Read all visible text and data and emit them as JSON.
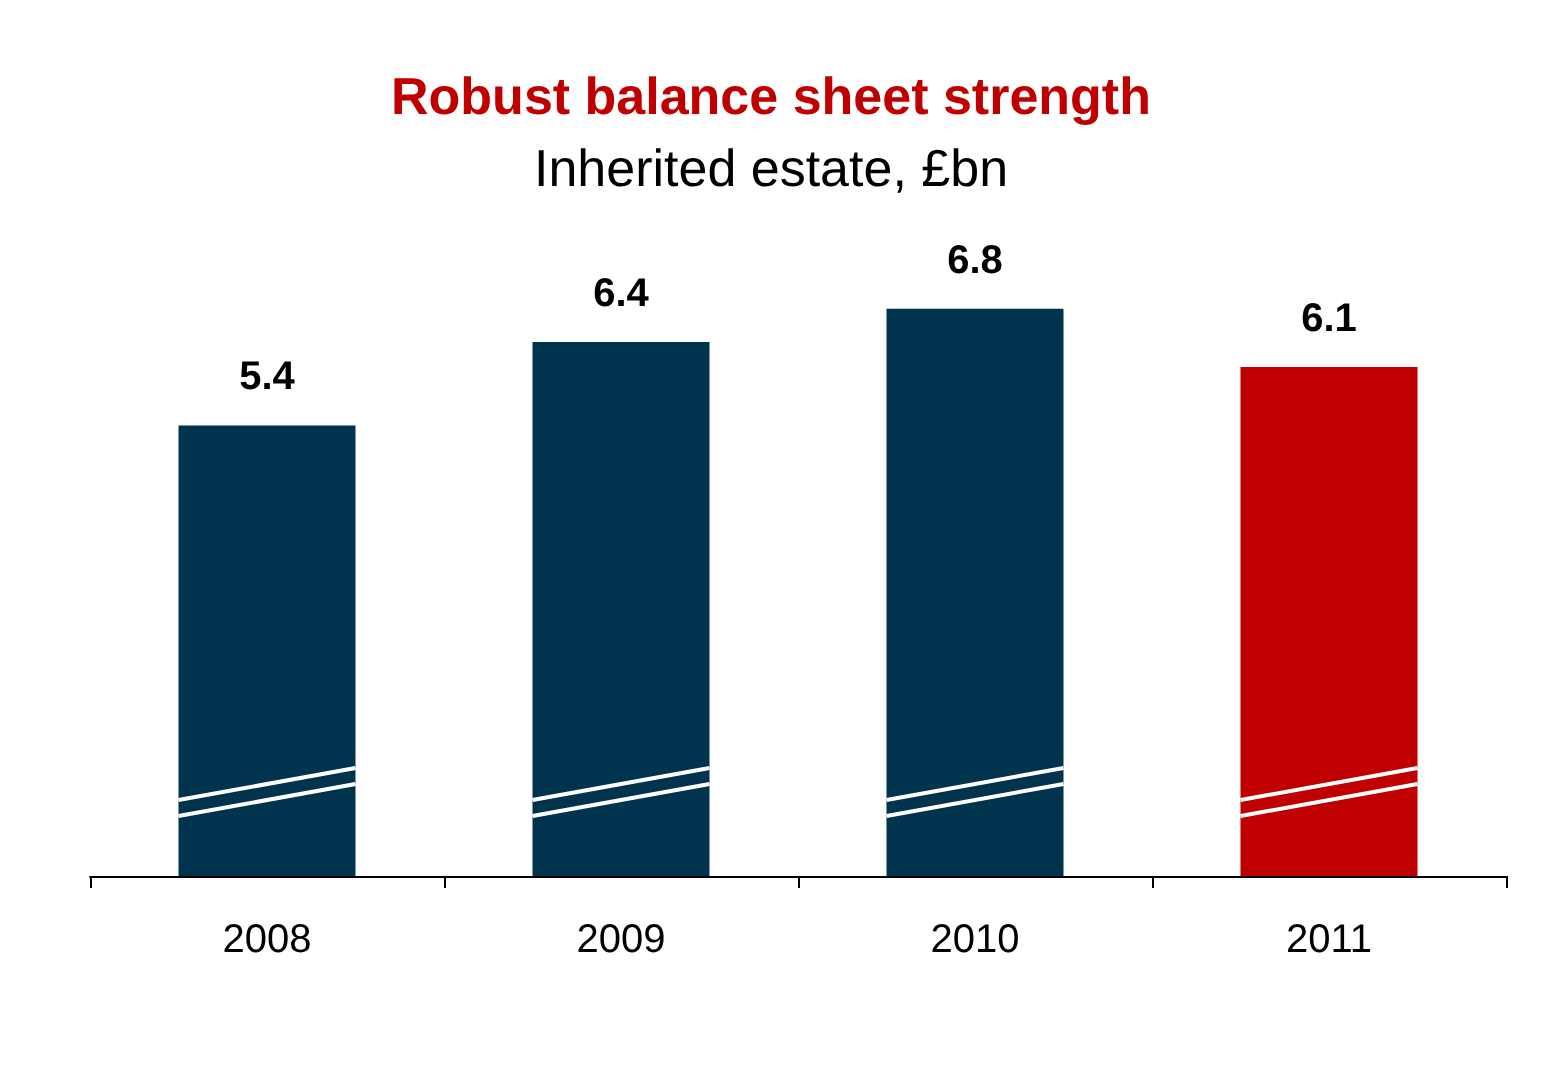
{
  "chart_data": {
    "type": "bar",
    "title": "Robust balance sheet strength",
    "subtitle": "Inherited estate, £bn",
    "categories": [
      "2008",
      "2009",
      "2010",
      "2011"
    ],
    "values": [
      5.4,
      6.4,
      6.8,
      6.1
    ],
    "colors": [
      "#00334e",
      "#00334e",
      "#00334e",
      "#c00000"
    ],
    "tick_labels": "x",
    "data_labels": true
  }
}
